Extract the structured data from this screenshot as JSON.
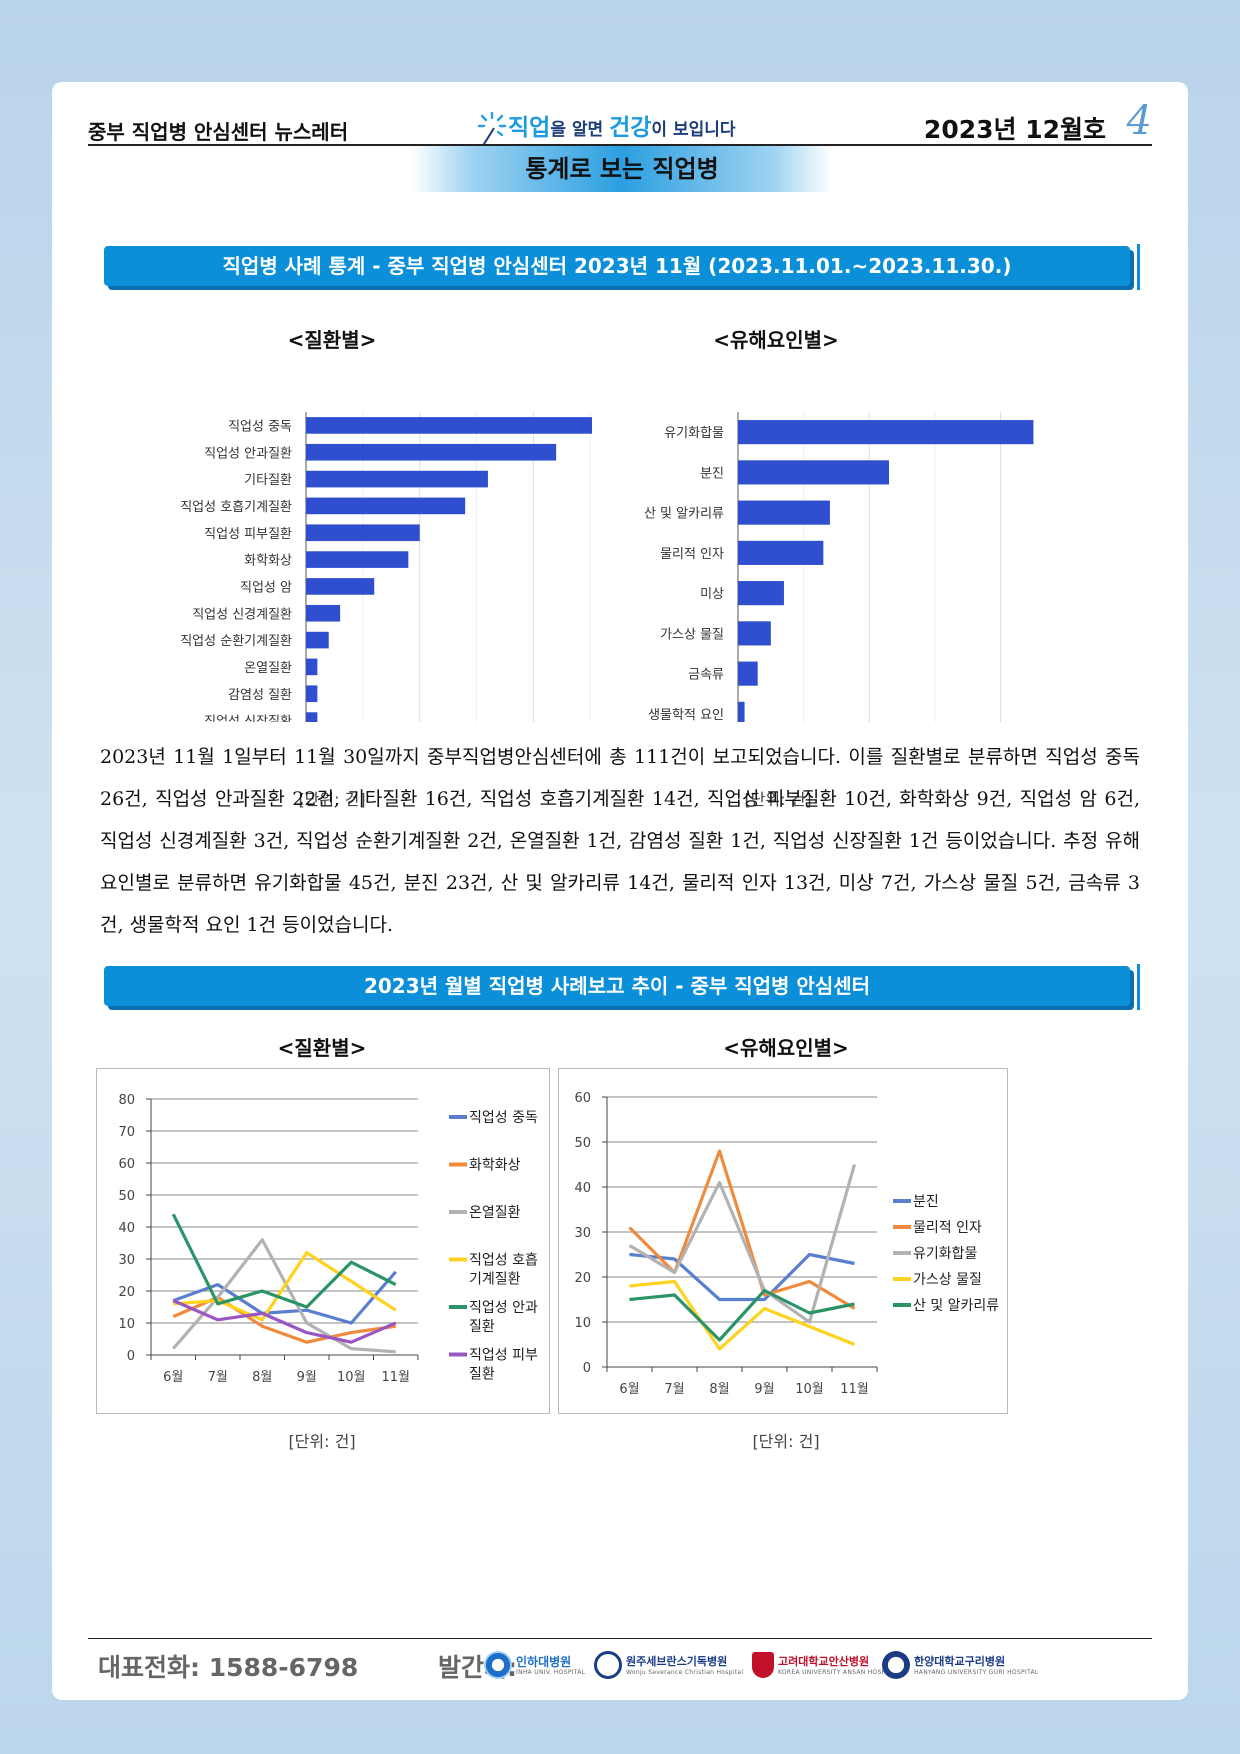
{
  "header": {
    "newsletter_name": "중부 직업병 안심센터 뉴스레터",
    "slogan_part1": "직업",
    "slogan_part2": "을 알면 ",
    "slogan_part3": "건강",
    "slogan_part4": "이 보입니다",
    "issue": "2023년 12월호",
    "page_number": "4",
    "section_title": "통계로 보는 직업병"
  },
  "banner1": "직업병 사례 통계 - 중부 직업병 안심센터  2023년 11월 (2023.11.01.~2023.11.30.)",
  "banner2": "2023년 월별 직업병 사례보고 추이 - 중부 직업병 안심센터",
  "unit_label": "[단위: 건]",
  "paragraph": "2023년 11월 1일부터 11월 30일까지 중부직업병안심센터에 총 111건이 보고되었습니다. 이를 질환별로 분류하면 직업성 중독 26건, 직업성 안과질환 22건, 기타질환 16건, 직업성 호흡기계질환 14건, 직업성 피부질환 10건, 화학화상 9건, 직업성 암 6건, 직업성 신경계질환 3건, 직업성 순환기계질환 2건, 온열질환 1건, 감염성 질환 1건, 직업성 신장질환 1건 등이었습니다. 추정 유해요인별로 분류하면 유기화합물 45건, 분진 23건, 산 및 알카리류 14건, 물리적 인자 13건, 미상 7건, 가스상 물질 5건, 금속류 3건, 생물학적 요인 1건 등이었습니다.",
  "chart_data": [
    {
      "type": "bar",
      "orientation": "horizontal",
      "title": "<질환별>",
      "categories": [
        "직업성 중독",
        "직업성 안과질환",
        "기타질환",
        "직업성 호흡기계질환",
        "직업성 피부질환",
        "화학화상",
        "직업성 암",
        "직업성 신경계질환",
        "직업성 순환기계질환",
        "온열질환",
        "감염성 질환",
        "직업성 신장질환"
      ],
      "values": [
        26,
        22,
        16,
        14,
        10,
        9,
        6,
        3,
        2,
        1,
        1,
        1
      ],
      "xlim": [
        0,
        27
      ],
      "xticks": [
        0,
        10,
        20
      ],
      "xlabel": "[단위: 건]",
      "color": "#2f4fcf",
      "grid": true
    },
    {
      "type": "bar",
      "orientation": "horizontal",
      "title": "<유해요인별>",
      "categories": [
        "유기화합물",
        "분진",
        "산 및 알카리류",
        "물리적 인자",
        "미상",
        "가스상 물질",
        "금속류",
        "생물학적 요인"
      ],
      "values": [
        45,
        23,
        14,
        13,
        7,
        5,
        3,
        1
      ],
      "xlim": [
        0,
        46
      ],
      "xticks": [
        0,
        20,
        40
      ],
      "xlabel": "[단위: 건]",
      "color": "#2f4fcf",
      "grid": true
    },
    {
      "type": "line",
      "title": "<질환별>",
      "x": [
        "6월",
        "7월",
        "8월",
        "9월",
        "10월",
        "11월"
      ],
      "ylim": [
        0,
        80
      ],
      "yticks": [
        0,
        10,
        20,
        30,
        40,
        50,
        60,
        70,
        80
      ],
      "xlabel": "[단위: 건]",
      "legend": "right",
      "grid": true,
      "series": [
        {
          "name": "직업성 중독",
          "color": "#5b7fd0",
          "values": [
            17,
            22,
            13,
            14,
            10,
            26
          ]
        },
        {
          "name": "화학화상",
          "color": "#f08a3c",
          "values": [
            12,
            18,
            9,
            4,
            7,
            9
          ]
        },
        {
          "name": "온열질환",
          "color": "#b2b2b2",
          "values": [
            2,
            18,
            36,
            10,
            2,
            1
          ]
        },
        {
          "name": "직업성 호흡기계질환",
          "color": "#ffd21f",
          "values": [
            16,
            17,
            11,
            32,
            23,
            14
          ]
        },
        {
          "name": "직업성 안과질환",
          "color": "#2a9467",
          "values": [
            44,
            16,
            20,
            15,
            29,
            22
          ]
        },
        {
          "name": "직업성 피부질환",
          "color": "#9a55c4",
          "values": [
            17,
            11,
            13,
            7,
            4,
            10
          ]
        }
      ],
      "legend_lines": [
        [
          "직업성 중독"
        ],
        [
          "화학화상"
        ],
        [
          "온열질환"
        ],
        [
          "직업성 호흡",
          "기계질환"
        ],
        [
          "직업성 안과",
          "질환"
        ],
        [
          "직업성 피부",
          "질환"
        ]
      ]
    },
    {
      "type": "line",
      "title": "<유해요인별>",
      "x": [
        "6월",
        "7월",
        "8월",
        "9월",
        "10월",
        "11월"
      ],
      "ylim": [
        0,
        60
      ],
      "yticks": [
        0,
        10,
        20,
        30,
        40,
        50,
        60
      ],
      "xlabel": "[단위: 건]",
      "legend": "right",
      "grid": true,
      "series": [
        {
          "name": "분진",
          "color": "#5b7fd0",
          "values": [
            25,
            24,
            15,
            15,
            25,
            23
          ]
        },
        {
          "name": "물리적 인자",
          "color": "#f08a3c",
          "values": [
            31,
            21,
            48,
            16,
            19,
            13
          ]
        },
        {
          "name": "유기화합물",
          "color": "#b2b2b2",
          "values": [
            27,
            21,
            41,
            17,
            10,
            45
          ]
        },
        {
          "name": "가스상 물질",
          "color": "#ffd21f",
          "values": [
            18,
            19,
            4,
            13,
            9,
            5
          ]
        },
        {
          "name": "산 및 알카리류",
          "color": "#2a9467",
          "values": [
            15,
            16,
            6,
            17,
            12,
            14
          ]
        }
      ]
    }
  ],
  "footer": {
    "phone": "대표전화: 1588-6798",
    "publisher_label": "발간처:",
    "logos": [
      {
        "name": "인하대병원",
        "sub": "INHA UNIV. HOSPITAL",
        "color": "#1d6fc9"
      },
      {
        "name": "원주세브란스기독병원",
        "sub": "Wonju Severance Christian Hospital",
        "color": "#1b3b84"
      },
      {
        "name": "고려대학교안산병원",
        "sub": "KOREA UNIVERSITY ANSAN HOSPITAL",
        "color": "#c0102a"
      },
      {
        "name": "한양대학교구리병원",
        "sub": "HANYANG UNIVERSITY GURI HOSPITAL",
        "color": "#1b3b84"
      }
    ]
  }
}
